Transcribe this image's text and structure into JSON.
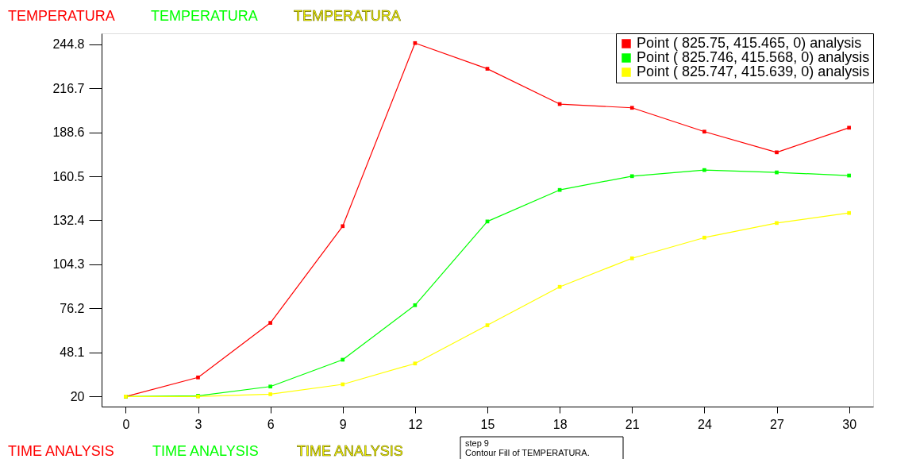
{
  "chart_data": {
    "type": "line",
    "xlabel": "TIME ANALYSIS",
    "ylabel": "TEMPERATURA",
    "x": [
      0,
      3,
      6,
      9,
      12,
      15,
      18,
      21,
      24,
      27,
      30
    ],
    "series": [
      {
        "name": "Point ( 825.75, 415.465, 0) analysis",
        "color": "#ff0000",
        "values": [
          20,
          32.2,
          67,
          128.7,
          245.5,
          229.1,
          206.6,
          204.2,
          189,
          175.8,
          191.5
        ]
      },
      {
        "name": "Point ( 825.746, 415.568, 0) analysis",
        "color": "#00ff00",
        "values": [
          20,
          20.5,
          26.4,
          43.5,
          78.3,
          131.7,
          151.8,
          160.6,
          164.5,
          163,
          161
        ]
      },
      {
        "name": "Point ( 825.747, 415.639, 0) analysis",
        "color": "#ffff00",
        "values": [
          20,
          20,
          21.5,
          27.8,
          41.1,
          65.5,
          90,
          108.2,
          121.4,
          130.7,
          137.1
        ]
      }
    ],
    "xlim": [
      -1,
      31
    ],
    "ylim": [
      13.6,
      251.7
    ],
    "xticks": [
      0,
      3,
      6,
      9,
      12,
      15,
      18,
      21,
      24,
      27,
      30
    ],
    "yticks": [
      20,
      48.1,
      76.2,
      104.3,
      132.4,
      160.5,
      188.6,
      216.7,
      244.8
    ],
    "grid": false,
    "legend": "top right",
    "marker": "square",
    "line_style": "solid",
    "annotations": [
      "step 9",
      "Contour Fill of TEMPERATURA."
    ]
  }
}
